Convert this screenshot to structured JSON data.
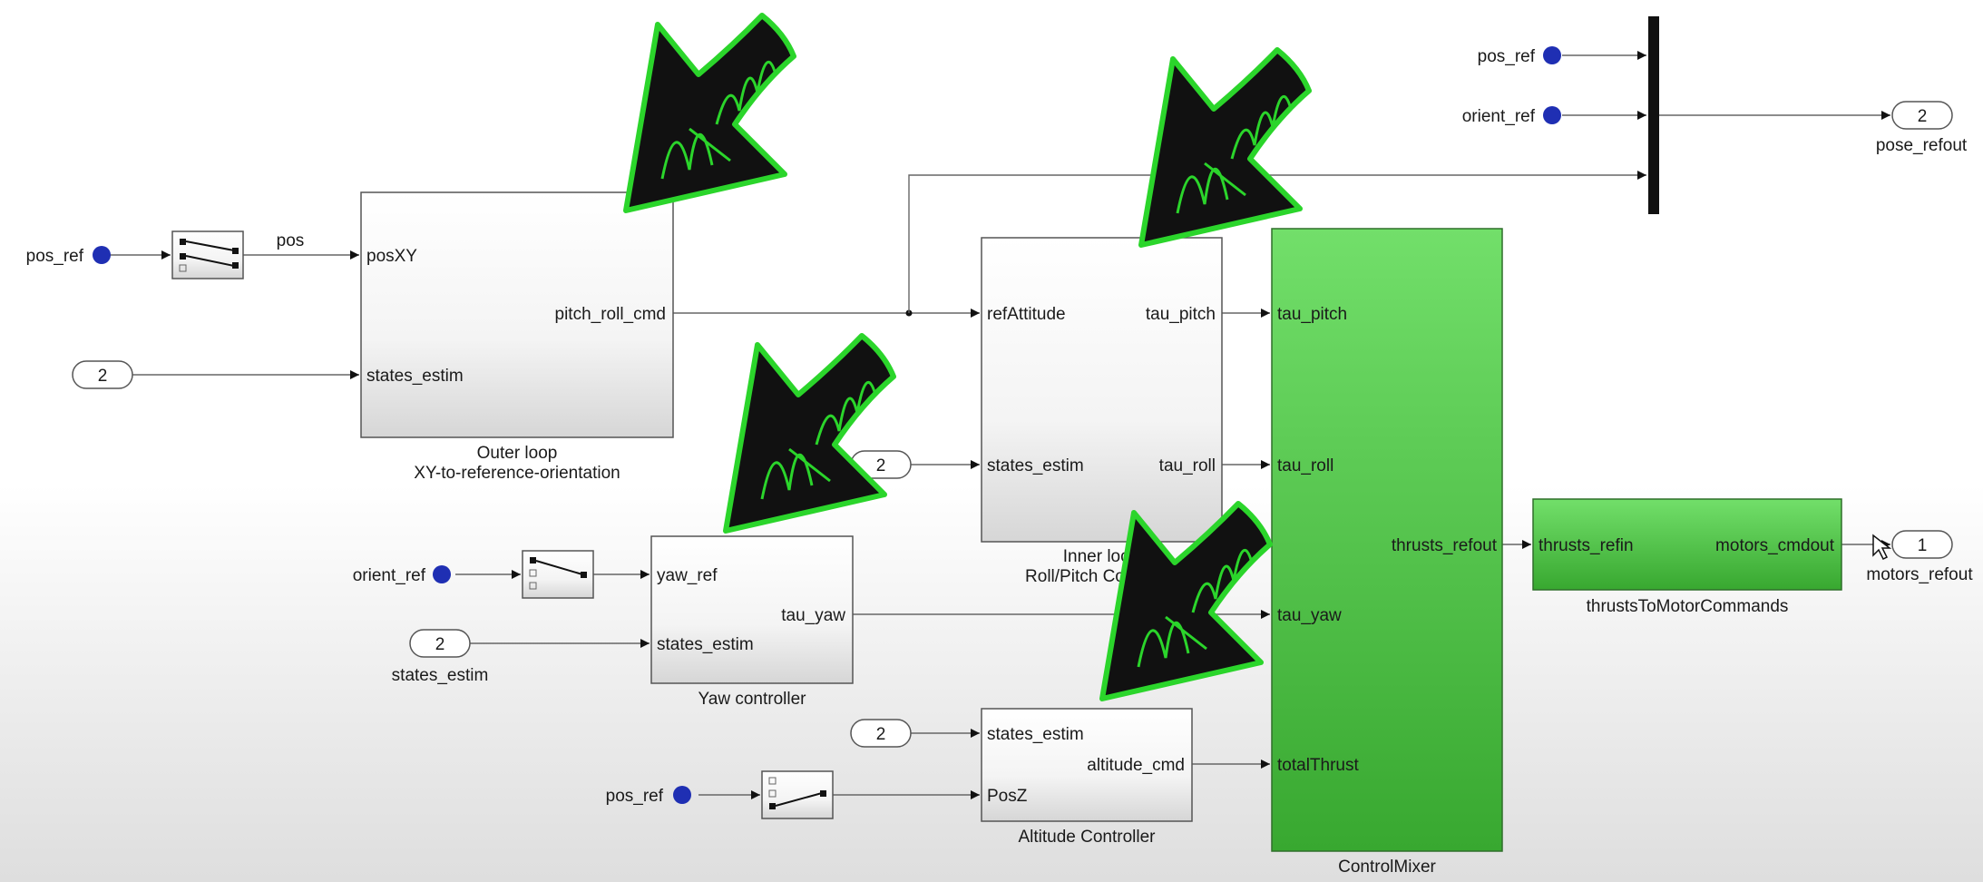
{
  "blocks": {
    "outer_loop": {
      "inputs": [
        "posXY",
        "states_estim"
      ],
      "outputs": [
        "pitch_roll_cmd"
      ],
      "caption_line1": "Outer loop",
      "caption_line2": "XY-to-reference-orientation"
    },
    "inner_loop": {
      "inputs": [
        "refAttitude",
        "states_estim"
      ],
      "outputs": [
        "tau_pitch",
        "tau_roll"
      ],
      "caption_line1": "Inner loop",
      "caption_line2": "Roll/Pitch Controller"
    },
    "yaw_controller": {
      "inputs": [
        "yaw_ref",
        "states_estim"
      ],
      "outputs": [
        "tau_yaw"
      ],
      "caption": "Yaw controller"
    },
    "altitude_controller": {
      "inputs": [
        "states_estim",
        "PosZ"
      ],
      "outputs": [
        "altitude_cmd"
      ],
      "caption": "Altitude Controller"
    },
    "control_mixer": {
      "inputs": [
        "tau_pitch",
        "tau_roll",
        "tau_yaw",
        "totalThrust"
      ],
      "outputs": [
        "thrusts_refout"
      ],
      "caption": "ControlMixer"
    },
    "thrusts_to_motor": {
      "inputs": [
        "thrusts_refin"
      ],
      "outputs": [
        "motors_cmdout"
      ],
      "caption": "thrustsToMotorCommands"
    }
  },
  "signals": {
    "pos_wire_label": "pos",
    "pos_ref_1": "pos_ref",
    "pos_ref_top": "pos_ref",
    "orient_ref_top": "orient_ref",
    "orient_ref_yaw": "orient_ref",
    "pos_ref_bottom": "pos_ref"
  },
  "ports": {
    "inport_left": "2",
    "inport_inner": "2",
    "inport_yaw": "2",
    "inport_yaw_label": "states_estim",
    "inport_alt": "2",
    "outport_pose": "2",
    "outport_pose_label": "pose_refout",
    "outport_motors": "1",
    "outport_motors_label": "motors_refout"
  },
  "colors": {
    "green_block_top": "#72df6a",
    "green_block_bottom": "#38a830",
    "annotation_green": "#2bd52b",
    "annotation_black": "#111111",
    "goto_dot": "#1f2fb3"
  },
  "annotations": {
    "arrow_icon": "hand-drawn-arrow-icon"
  }
}
